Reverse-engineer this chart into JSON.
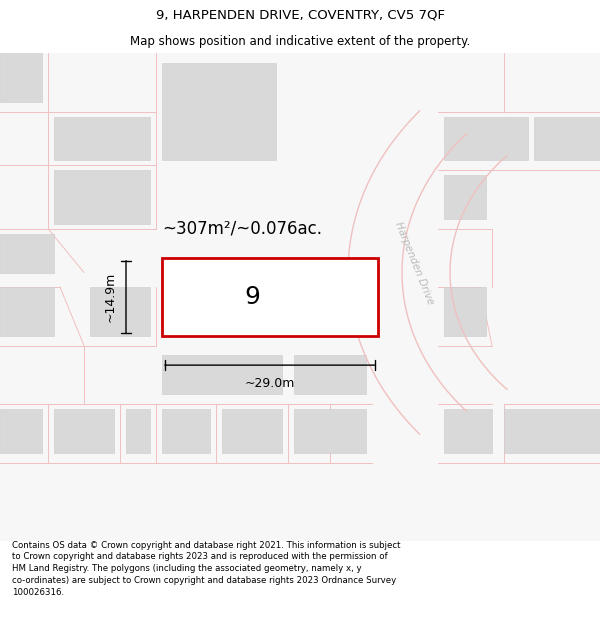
{
  "title_line1": "9, HARPENDEN DRIVE, COVENTRY, CV5 7QF",
  "title_line2": "Map shows position and indicative extent of the property.",
  "footer_text": "Contains OS data © Crown copyright and database right 2021. This information is subject to Crown copyright and database rights 2023 and is reproduced with the permission of HM Land Registry. The polygons (including the associated geometry, namely x, y co-ordinates) are subject to Crown copyright and database rights 2023 Ordnance Survey 100026316.",
  "area_label": "~307m²/~0.076ac.",
  "width_label": "~29.0m",
  "height_label": "~14.9m",
  "plot_number": "9",
  "road_label": "Harpenden Drive",
  "map_bg": "#f7f7f7",
  "plot_color": "#cc0000",
  "road_color": "#f0c0c0",
  "block_color": "#d9d9d9",
  "block_edge": "#cccccc",
  "road_label_color": "#bbbbbb",
  "title_fontsize": 9.5,
  "subtitle_fontsize": 8.5,
  "footer_fontsize": 6.2,
  "area_fontsize": 12,
  "dim_fontsize": 9,
  "plot_num_fontsize": 18,
  "road_label_fontsize": 7.5
}
